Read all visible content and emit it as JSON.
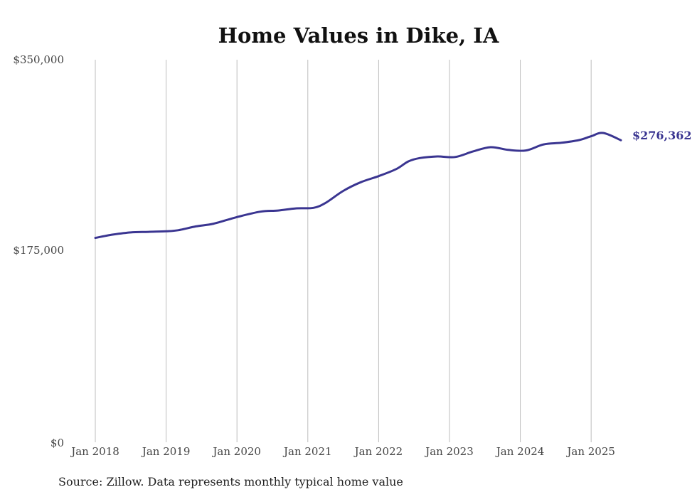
{
  "colors": {
    "line": "#3a3591",
    "grid": "#bdbdbd",
    "text": "#444444"
  },
  "source_text": "Source: Zillow. Data represents monthly typical home value",
  "chart_data": {
    "type": "line",
    "title": "Home Values in Dike, IA",
    "xlabel": "",
    "ylabel": "",
    "ylim": [
      0,
      350000
    ],
    "yticks": [
      0,
      175000,
      350000
    ],
    "ytick_labels": [
      "$0",
      "$175,000",
      "$350,000"
    ],
    "xlim": [
      2018.0,
      2025.42
    ],
    "xticks": [
      2018,
      2019,
      2020,
      2021,
      2022,
      2023,
      2024,
      2025
    ],
    "xtick_labels": [
      "Jan 2018",
      "Jan 2019",
      "Jan 2020",
      "Jan 2021",
      "Jan 2022",
      "Jan 2023",
      "Jan 2024",
      "Jan 2025"
    ],
    "grid": "vertical",
    "end_label": "$276,362",
    "series": [
      {
        "name": "Typical home value",
        "x": [
          2018.0,
          2018.25,
          2018.5,
          2018.75,
          2019.0,
          2019.17,
          2019.42,
          2019.67,
          2020.0,
          2020.33,
          2020.58,
          2020.83,
          2021.08,
          2021.25,
          2021.5,
          2021.75,
          2022.0,
          2022.25,
          2022.42,
          2022.58,
          2022.83,
          2023.08,
          2023.33,
          2023.58,
          2023.83,
          2024.08,
          2024.33,
          2024.58,
          2024.83,
          2025.0,
          2025.17,
          2025.42
        ],
        "values": [
          187000,
          190000,
          192000,
          192500,
          193000,
          194000,
          197500,
          200000,
          206000,
          211000,
          212000,
          214000,
          214500,
          219000,
          230000,
          238000,
          243500,
          250000,
          257000,
          260000,
          261500,
          261000,
          266000,
          270000,
          267500,
          267000,
          272500,
          274000,
          276500,
          280000,
          283000,
          276362
        ]
      }
    ]
  }
}
